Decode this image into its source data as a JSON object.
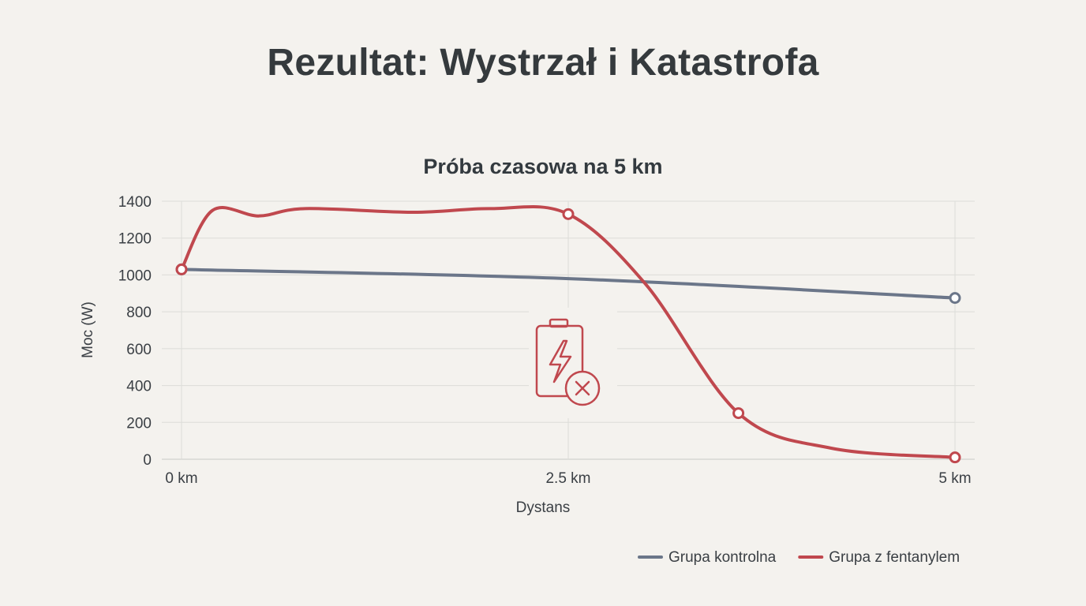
{
  "page": {
    "title": "Rezultat: Wystrzał i Katastrofa"
  },
  "chart_data": {
    "type": "line",
    "title": "Próba czasowa na 5 km",
    "xlabel": "Dystans",
    "ylabel": "Moc (W)",
    "x_tick_labels": [
      "0 km",
      "2.5 km",
      "5 km"
    ],
    "x_ticks": [
      0,
      2.5,
      5
    ],
    "y_ticks": [
      0,
      200,
      400,
      600,
      800,
      1000,
      1200,
      1400
    ],
    "xlim": [
      0,
      5
    ],
    "ylim": [
      0,
      1400
    ],
    "grid": true,
    "legend_position": "bottom-right",
    "icon": "battery-failure-icon",
    "series": [
      {
        "name": "Grupa kontrolna",
        "color": "#6b7689",
        "x": [
          0,
          2.5,
          5
        ],
        "values": [
          1030,
          980,
          875
        ],
        "markers": [
          0,
          5
        ]
      },
      {
        "name": "Grupa z fentanylem",
        "color": "#c0484e",
        "x": [
          0,
          0.2,
          0.5,
          0.8,
          1.5,
          2.0,
          2.5,
          3.0,
          3.6,
          4.2,
          5
        ],
        "values": [
          1030,
          1350,
          1320,
          1360,
          1340,
          1360,
          1330,
          950,
          250,
          60,
          10
        ],
        "markers": [
          0,
          2.5,
          3.6,
          5
        ]
      }
    ]
  }
}
